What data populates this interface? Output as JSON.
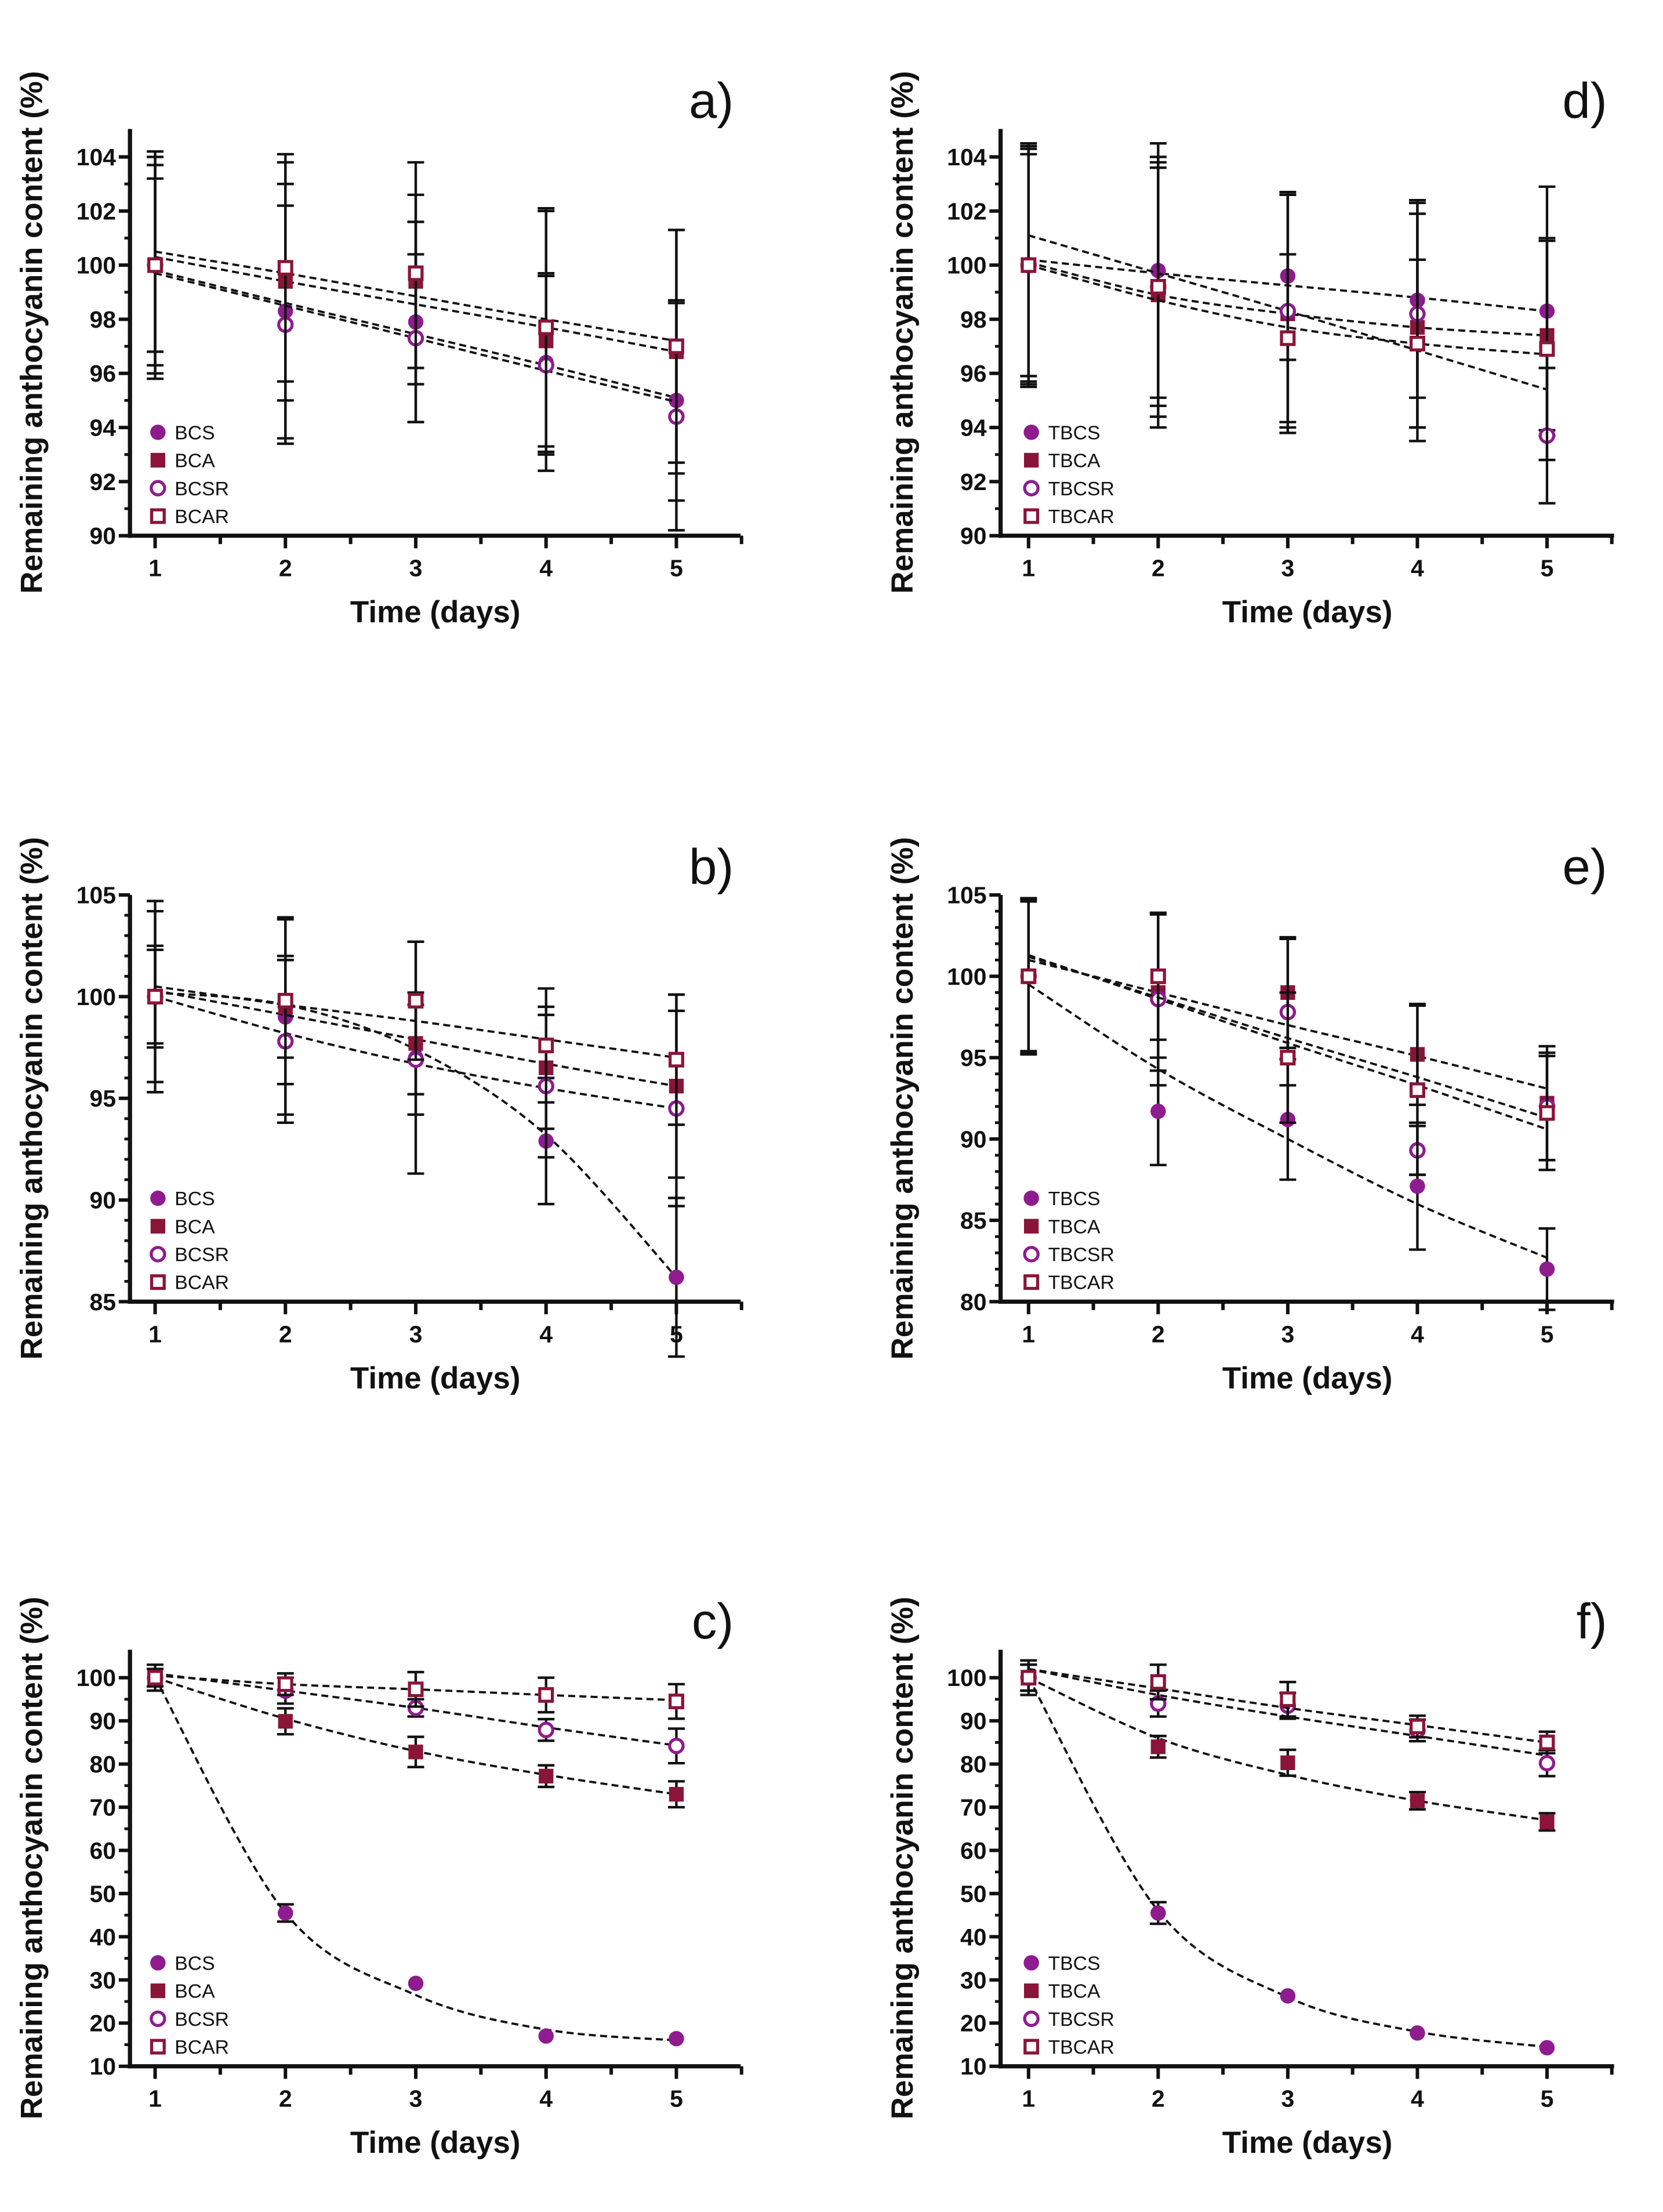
{
  "colors": {
    "purple": "#8e1c8e",
    "maroon": "#8a1538",
    "axis": "#111111"
  },
  "chart_data": [
    {
      "panel": "a)",
      "type": "line",
      "xlabel": "Time (days)",
      "ylabel": "Remaining anthocyanin content (%)",
      "x": [
        1,
        2,
        3,
        4,
        5
      ],
      "ylim": [
        90,
        104
      ],
      "yticks": [
        90,
        92,
        94,
        96,
        98,
        100,
        102,
        104
      ],
      "yminor": 1,
      "legend": "bottom-left",
      "series": [
        {
          "name": "BCS",
          "marker": "circle-filled",
          "values": [
            100,
            98.3,
            97.9,
            96.4,
            95.0
          ],
          "err": [
            4.0,
            4.7,
            3.7,
            3.3,
            3.7
          ],
          "fit": [
            99.8,
            98.6,
            97.45,
            96.3,
            95.1
          ]
        },
        {
          "name": "BCA",
          "marker": "square-filled",
          "values": [
            100,
            99.4,
            99.4,
            97.2,
            96.8
          ],
          "err": [
            4.2,
            4.4,
            3.2,
            4.8,
            4.5
          ],
          "fit": [
            100.3,
            99.4,
            98.55,
            97.7,
            96.8
          ]
        },
        {
          "name": "BCSR",
          "marker": "circle-open",
          "values": [
            100,
            97.8,
            97.3,
            96.3,
            94.4
          ],
          "err": [
            3.2,
            4.4,
            3.1,
            3.3,
            4.2
          ],
          "fit": [
            99.7,
            98.5,
            97.3,
            96.1,
            94.95
          ]
        },
        {
          "name": "BCAR",
          "marker": "square-open",
          "values": [
            100,
            99.9,
            99.7,
            97.7,
            97.0
          ],
          "err": [
            3.7,
            4.2,
            4.1,
            4.4,
            4.3
          ],
          "fit": [
            100.5,
            99.7,
            98.85,
            98.0,
            97.2
          ]
        }
      ]
    },
    {
      "panel": "b)",
      "type": "line",
      "xlabel": "Time (days)",
      "ylabel": "Remaining anthocyanin content (%)",
      "x": [
        1,
        2,
        3,
        4,
        5
      ],
      "ylim": [
        85,
        105
      ],
      "yticks": [
        85,
        90,
        95,
        100,
        105
      ],
      "yminor": 1,
      "legend": "bottom-left",
      "series": [
        {
          "name": "BCS",
          "marker": "circle-filled",
          "values": [
            100,
            99.0,
            97.0,
            92.9,
            86.2
          ],
          "err": [
            4.7,
            4.8,
            5.7,
            3.1,
            3.9
          ],
          "fit": [
            100.2,
            99.6,
            97.4,
            93.2,
            86.2
          ]
        },
        {
          "name": "BCA",
          "marker": "square-filled",
          "values": [
            100,
            99.5,
            97.7,
            96.5,
            95.6
          ],
          "err": [
            2.5,
            2.5,
            2.5,
            3.0,
            4.5
          ],
          "fit": [
            100.3,
            99.1,
            97.9,
            96.7,
            95.6
          ]
        },
        {
          "name": "BCSR",
          "marker": "circle-open",
          "values": [
            100,
            97.8,
            96.9,
            95.6,
            94.5
          ],
          "err": [
            2.3,
            4.0,
            2.7,
            3.5,
            4.8
          ],
          "fit": [
            100.0,
            98.2,
            96.7,
            95.5,
            94.5
          ]
        },
        {
          "name": "BCAR",
          "marker": "square-open",
          "values": [
            100,
            99.8,
            99.8,
            97.6,
            96.9
          ],
          "err": [
            4.2,
            4.1,
            2.9,
            2.8,
            3.2
          ],
          "fit": [
            100.5,
            99.6,
            98.8,
            97.9,
            97.0
          ]
        }
      ]
    },
    {
      "panel": "c)",
      "type": "line",
      "xlabel": "Time (days)",
      "ylabel": "Remaining anthocyanin content (%)",
      "x": [
        1,
        2,
        3,
        4,
        5
      ],
      "ylim": [
        10,
        100
      ],
      "yticks": [
        10,
        20,
        30,
        40,
        50,
        60,
        70,
        80,
        90,
        100
      ],
      "yminor": 5,
      "legend": "bottom-left",
      "series": [
        {
          "name": "BCS",
          "marker": "circle-filled",
          "values": [
            100,
            45.5,
            29.2,
            17.0,
            16.4
          ],
          "err": [
            3.0,
            2.0,
            0,
            0,
            0
          ],
          "fit": [
            100,
            45.5,
            26.5,
            18.5,
            16.0
          ]
        },
        {
          "name": "BCA",
          "marker": "square-filled",
          "values": [
            100,
            89.9,
            82.8,
            77.2,
            73.0
          ],
          "err": [
            2.0,
            3.0,
            3.5,
            2.5,
            3.0
          ],
          "fit": [
            100,
            90.5,
            83.0,
            77.5,
            73.0
          ]
        },
        {
          "name": "BCSR",
          "marker": "circle-open",
          "values": [
            100,
            97.0,
            93.0,
            87.9,
            84.2
          ],
          "err": [
            2.0,
            3.0,
            2.0,
            2.5,
            4.0
          ],
          "fit": [
            101,
            97.0,
            93.0,
            88.5,
            84.3
          ]
        },
        {
          "name": "BCAR",
          "marker": "square-open",
          "values": [
            100,
            98.5,
            97.3,
            96.0,
            94.5
          ],
          "err": [
            2.0,
            2.5,
            4.0,
            4.0,
            4.0
          ],
          "fit": [
            100.5,
            98.5,
            97.3,
            96.0,
            94.8
          ]
        }
      ]
    },
    {
      "panel": "d)",
      "type": "line",
      "xlabel": "Time (days)",
      "ylabel": "Remaining anthocyanin content (%)",
      "x": [
        1,
        2,
        3,
        4,
        5
      ],
      "ylim": [
        90,
        104
      ],
      "yticks": [
        90,
        92,
        94,
        96,
        98,
        100,
        102,
        104
      ],
      "yminor": 1,
      "legend": "bottom-left",
      "series": [
        {
          "name": "TBCS",
          "marker": "circle-filled",
          "values": [
            100,
            99.8,
            99.6,
            98.7,
            98.3
          ],
          "err": [
            4.3,
            4.7,
            3.1,
            3.6,
            4.6
          ],
          "fit": [
            100.2,
            99.7,
            99.25,
            98.8,
            98.3
          ]
        },
        {
          "name": "TBCA",
          "marker": "square-filled",
          "values": [
            100,
            98.9,
            98.2,
            97.7,
            97.4
          ],
          "err": [
            4.4,
            4.9,
            4.4,
            4.2,
            3.5
          ],
          "fit": [
            100.1,
            98.9,
            98.2,
            97.7,
            97.4
          ]
        },
        {
          "name": "TBCSR",
          "marker": "circle-open",
          "values": [
            100,
            99.2,
            98.3,
            98.2,
            93.7
          ],
          "err": [
            4.5,
            4.4,
            4.3,
            4.2,
            2.5
          ],
          "fit": [
            101.1,
            99.7,
            98.3,
            96.85,
            95.4
          ]
        },
        {
          "name": "TBCAR",
          "marker": "square-open",
          "values": [
            100,
            99.2,
            97.3,
            97.1,
            96.9
          ],
          "err": [
            4.1,
            4.8,
            3.1,
            3.1,
            4.1
          ],
          "fit": [
            100.0,
            98.7,
            97.7,
            97.1,
            96.7
          ]
        }
      ]
    },
    {
      "panel": "e)",
      "type": "line",
      "xlabel": "Time (days)",
      "ylabel": "Remaining anthocyanin content (%)",
      "x": [
        1,
        2,
        3,
        4,
        5
      ],
      "ylim": [
        80,
        105
      ],
      "yticks": [
        80,
        85,
        90,
        95,
        100,
        105
      ],
      "yminor": 1,
      "legend": "bottom-left",
      "series": [
        {
          "name": "TBCS",
          "marker": "circle-filled",
          "values": [
            100,
            91.7,
            91.2,
            87.1,
            82.0
          ],
          "err": [
            4.6,
            3.3,
            3.7,
            3.9,
            2.5
          ],
          "fit": [
            99.5,
            94.3,
            90.0,
            86.0,
            82.7
          ]
        },
        {
          "name": "TBCA",
          "marker": "square-filled",
          "values": [
            100,
            99.0,
            99.0,
            95.2,
            92.2
          ],
          "err": [
            4.8,
            4.8,
            3.4,
            3.1,
            3.5
          ],
          "fit": [
            101.0,
            99.0,
            97.0,
            95.1,
            93.1
          ]
        },
        {
          "name": "TBCSR",
          "marker": "circle-open",
          "values": [
            100,
            98.6,
            97.8,
            89.3,
            92.0
          ],
          "err": [
            4.8,
            5.3,
            4.5,
            1.5,
            3.3
          ],
          "fit": [
            101.3,
            98.6,
            95.9,
            93.3,
            90.6
          ]
        },
        {
          "name": "TBCAR",
          "marker": "square-open",
          "values": [
            100,
            100,
            95.0,
            93.0,
            91.6
          ],
          "err": [
            4.7,
            3.9,
            4.0,
            5.2,
            3.5
          ],
          "fit": [
            101.2,
            98.7,
            96.2,
            93.8,
            91.3
          ]
        }
      ]
    },
    {
      "panel": "f)",
      "type": "line",
      "xlabel": "Time (days)",
      "ylabel": "Remaining anthocyanin content (%)",
      "x": [
        1,
        2,
        3,
        4,
        5
      ],
      "ylim": [
        10,
        100
      ],
      "yticks": [
        10,
        20,
        30,
        40,
        50,
        60,
        70,
        80,
        90,
        100
      ],
      "yminor": 5,
      "legend": "bottom-left",
      "series": [
        {
          "name": "TBCS",
          "marker": "circle-filled",
          "values": [
            100,
            45.5,
            26.3,
            17.7,
            14.3
          ],
          "err": [
            3.0,
            2.5,
            0,
            0,
            0
          ],
          "fit": [
            100,
            46.0,
            26.0,
            18.0,
            14.5
          ]
        },
        {
          "name": "TBCA",
          "marker": "square-filled",
          "values": [
            100,
            84.0,
            80.3,
            71.5,
            66.6
          ],
          "err": [
            3.0,
            2.5,
            3.0,
            2.0,
            2.0
          ],
          "fit": [
            100,
            86.0,
            77.5,
            71.5,
            67.0
          ]
        },
        {
          "name": "TBCSR",
          "marker": "circle-open",
          "values": [
            100,
            94.0,
            93.5,
            87.8,
            80.2
          ],
          "err": [
            3.0,
            3.0,
            3.0,
            2.5,
            3.0
          ],
          "fit": [
            102,
            96.0,
            91.0,
            86.5,
            82.0
          ]
        },
        {
          "name": "TBCAR",
          "marker": "square-open",
          "values": [
            100,
            99.0,
            95.0,
            88.7,
            85.0
          ],
          "err": [
            4.0,
            4.0,
            4.0,
            2.5,
            2.5
          ],
          "fit": [
            102,
            97.5,
            93.0,
            89.0,
            85.0
          ]
        }
      ]
    }
  ]
}
